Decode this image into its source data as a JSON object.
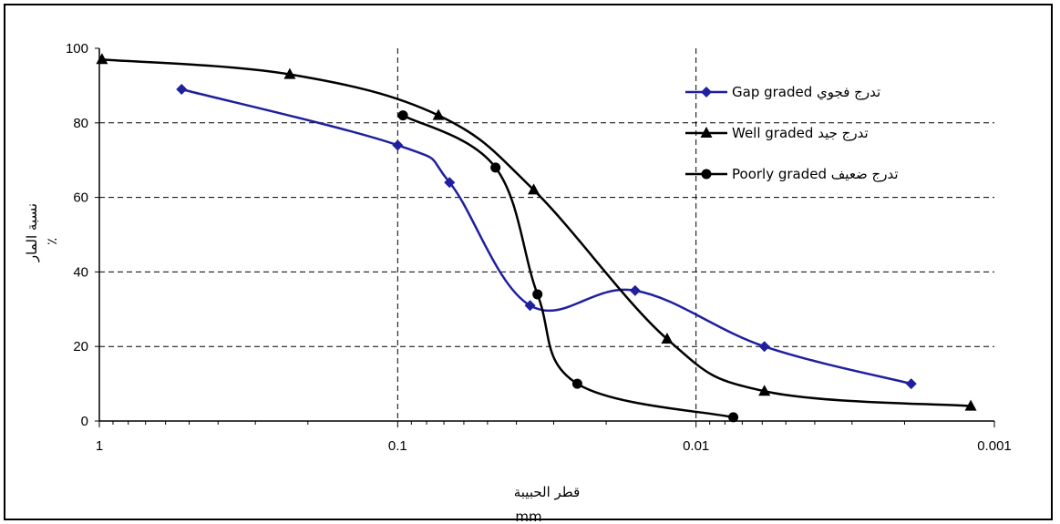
{
  "chart_data": {
    "type": "line",
    "xscale": "log",
    "xreversed": true,
    "xlim": [
      1,
      0.001
    ],
    "ylim": [
      0,
      100
    ],
    "grid": true,
    "legend_position": "top-right",
    "xlabel": "قطر الحبيبة",
    "xunit": "mm",
    "ylabel": "نسبة المار",
    "yunit": "٪",
    "xticks": [
      {
        "value": 1,
        "label": "1"
      },
      {
        "value": 0.1,
        "label": "0.1"
      },
      {
        "value": 0.01,
        "label": "0.01"
      },
      {
        "value": 0.001,
        "label": "0.001"
      }
    ],
    "yticks": [
      {
        "value": 0,
        "label": "0"
      },
      {
        "value": 20,
        "label": "20"
      },
      {
        "value": 40,
        "label": "40"
      },
      {
        "value": 60,
        "label": "60"
      },
      {
        "value": 80,
        "label": "80"
      },
      {
        "value": 100,
        "label": "100"
      }
    ],
    "series": [
      {
        "name": "Gap graded تدرج فجوي",
        "color": "#1f1fa0",
        "marker": "diamond",
        "x": [
          0.53,
          0.1,
          0.067,
          0.036,
          0.016,
          0.0059,
          0.0019
        ],
        "y": [
          89,
          74,
          64,
          31,
          35,
          20,
          10
        ]
      },
      {
        "name": "Well graded تدرج جيد",
        "color": "#000000",
        "marker": "triangle",
        "x": [
          0.98,
          0.23,
          0.073,
          0.035,
          0.0125,
          0.0059,
          0.0012
        ],
        "y": [
          97,
          93,
          82,
          62,
          22,
          8,
          4
        ]
      },
      {
        "name": "Poorly graded تدرج ضعيف",
        "color": "#000000",
        "marker": "circle",
        "x": [
          0.096,
          0.047,
          0.034,
          0.025,
          0.0075
        ],
        "y": [
          82,
          68,
          34,
          10,
          1
        ]
      }
    ]
  }
}
